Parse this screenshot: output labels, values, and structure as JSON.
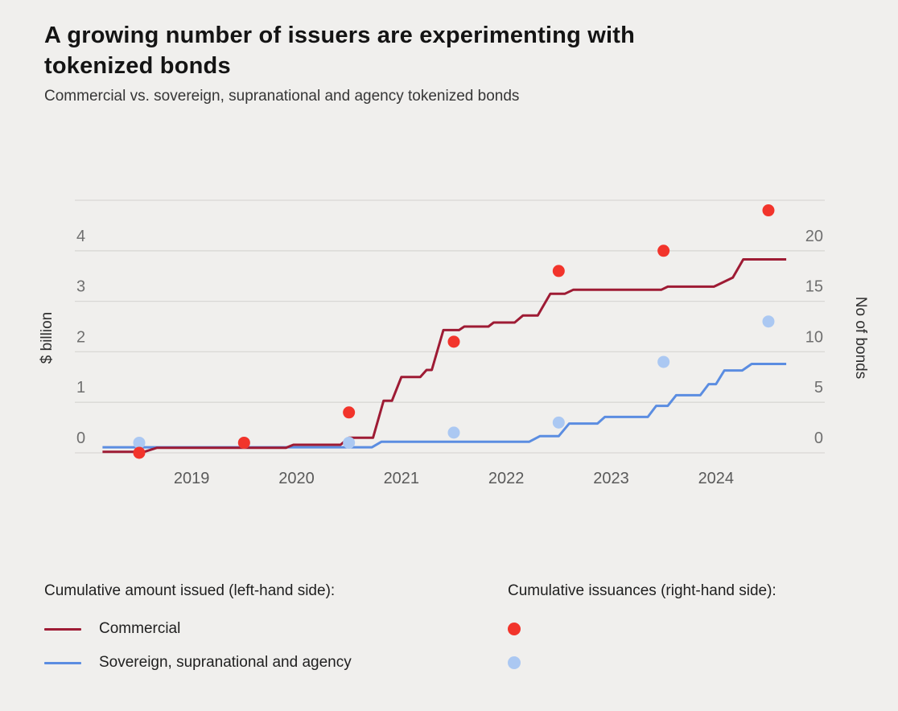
{
  "header": {
    "title": "A growing number of issuers are experimenting with tokenized bonds",
    "subtitle": "Commercial vs. sovereign, supranational and agency tokenized bonds"
  },
  "colors": {
    "background": "#f0efed",
    "gridline": "#d9d8d5",
    "tick_text": "#6f6f6f",
    "year_text": "#5a5a5a",
    "axis_title_text": "#2f2f2f",
    "commercial_line": "#9e1b34",
    "sovereign_line": "#5b8de1",
    "commercial_dot": "#f2342b",
    "sovereign_dot": "#abc8f2"
  },
  "chart_data": {
    "type": "line",
    "title": "A growing number of issuers are experimenting with tokenized bonds",
    "subtitle": "Commercial vs. sovereign, supranational and agency tokenized bonds",
    "xlabel": "",
    "ylabel_left": "$ billion",
    "ylabel_right": "No of bonds",
    "grid": true,
    "left_axis": {
      "label": "$ billion",
      "ticks": [
        0,
        1,
        2,
        3,
        4
      ],
      "range": [
        0,
        5
      ]
    },
    "right_axis": {
      "label": "No of bonds",
      "ticks": [
        0,
        5,
        10,
        15,
        20
      ],
      "range": [
        0,
        25
      ]
    },
    "x_axis": {
      "tick_labels": [
        "2019",
        "2020",
        "2021",
        "2022",
        "2023",
        "2024"
      ],
      "range_years": [
        2018.65,
        2025.35
      ]
    },
    "series": [
      {
        "name": "Commercial",
        "kind": "step-line",
        "axis": "left",
        "units": "$ billion",
        "points": [
          [
            2018.65,
            0.02
          ],
          [
            2019.05,
            0.02
          ],
          [
            2019.17,
            0.1
          ],
          [
            2020.4,
            0.1
          ],
          [
            2020.47,
            0.16
          ],
          [
            2020.92,
            0.16
          ],
          [
            2021.0,
            0.3
          ],
          [
            2021.23,
            0.3
          ],
          [
            2021.33,
            1.03
          ],
          [
            2021.41,
            1.03
          ],
          [
            2021.5,
            1.5
          ],
          [
            2021.68,
            1.5
          ],
          [
            2021.74,
            1.64
          ],
          [
            2021.79,
            1.64
          ],
          [
            2021.9,
            2.43
          ],
          [
            2022.05,
            2.43
          ],
          [
            2022.1,
            2.5
          ],
          [
            2022.33,
            2.5
          ],
          [
            2022.38,
            2.58
          ],
          [
            2022.58,
            2.58
          ],
          [
            2022.66,
            2.72
          ],
          [
            2022.8,
            2.72
          ],
          [
            2022.92,
            3.15
          ],
          [
            2023.06,
            3.15
          ],
          [
            2023.14,
            3.23
          ],
          [
            2023.98,
            3.23
          ],
          [
            2024.04,
            3.29
          ],
          [
            2024.48,
            3.29
          ],
          [
            2024.66,
            3.47
          ],
          [
            2024.76,
            3.83
          ],
          [
            2025.17,
            3.83
          ]
        ]
      },
      {
        "name": "Sovereign, supranational and agency",
        "kind": "step-line",
        "axis": "left",
        "units": "$ billion",
        "points": [
          [
            2018.65,
            0.11
          ],
          [
            2021.22,
            0.11
          ],
          [
            2021.31,
            0.22
          ],
          [
            2022.72,
            0.22
          ],
          [
            2022.82,
            0.33
          ],
          [
            2023.0,
            0.33
          ],
          [
            2023.1,
            0.58
          ],
          [
            2023.37,
            0.58
          ],
          [
            2023.44,
            0.71
          ],
          [
            2023.85,
            0.71
          ],
          [
            2023.93,
            0.93
          ],
          [
            2024.04,
            0.93
          ],
          [
            2024.12,
            1.14
          ],
          [
            2024.35,
            1.14
          ],
          [
            2024.43,
            1.36
          ],
          [
            2024.5,
            1.36
          ],
          [
            2024.58,
            1.63
          ],
          [
            2024.75,
            1.63
          ],
          [
            2024.84,
            1.76
          ],
          [
            2025.17,
            1.76
          ]
        ]
      },
      {
        "name": "Commercial issuances",
        "kind": "scatter",
        "axis": "right",
        "units": "No of bonds",
        "points": [
          [
            2018,
            0
          ],
          [
            2019,
            1
          ],
          [
            2020,
            4
          ],
          [
            2021,
            11
          ],
          [
            2022,
            18
          ],
          [
            2023,
            20
          ],
          [
            2024,
            24
          ]
        ]
      },
      {
        "name": "Sovereign, supranational and agency issuances",
        "kind": "scatter",
        "axis": "right",
        "units": "No of bonds",
        "points": [
          [
            2018,
            1
          ],
          [
            2019,
            1
          ],
          [
            2020,
            1
          ],
          [
            2021,
            2
          ],
          [
            2022,
            3
          ],
          [
            2023,
            9
          ],
          [
            2024,
            13
          ]
        ]
      }
    ]
  },
  "legend": {
    "left": {
      "header": "Cumulative amount issued (left-hand side):",
      "items": [
        {
          "label": "Commercial"
        },
        {
          "label": "Sovereign, supranational and agency"
        }
      ]
    },
    "right": {
      "header": "Cumulative issuances (right-hand side):",
      "items": [
        {
          "series": "Commercial"
        },
        {
          "series": "Sovereign, supranational and agency"
        }
      ]
    }
  }
}
